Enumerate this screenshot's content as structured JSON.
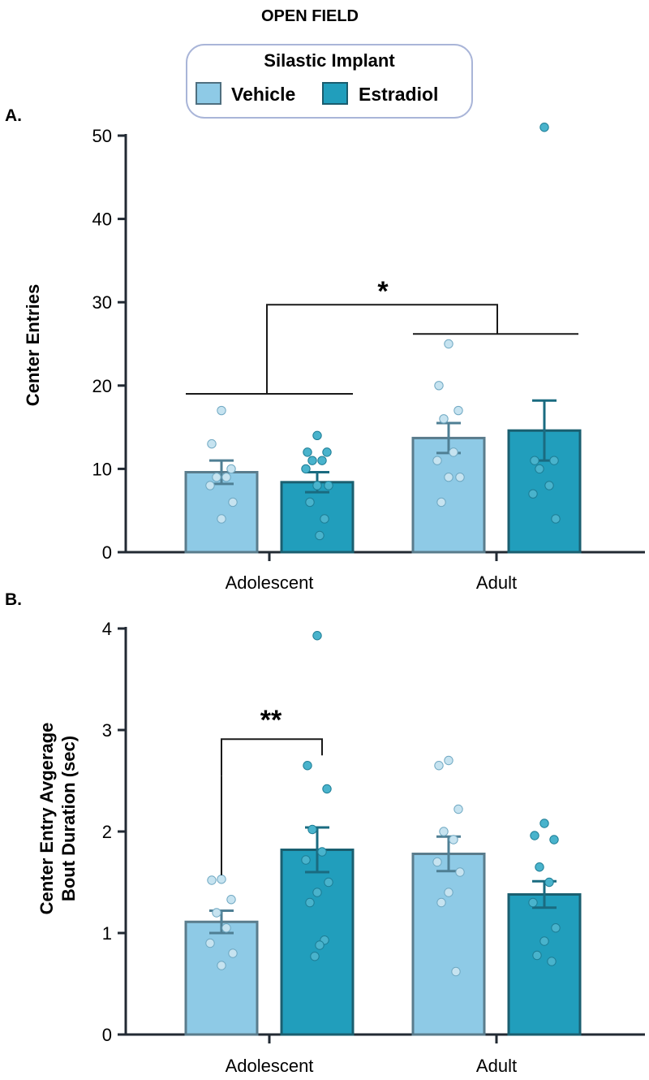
{
  "title": "OPEN FIELD",
  "legend": {
    "title": "Silastic Implant",
    "items": [
      {
        "label": "Vehicle",
        "color": "#8ecae6",
        "edge": "#4f6f7f"
      },
      {
        "label": "Estradiol",
        "color": "#219ebc",
        "edge": "#1a5c6e"
      }
    ]
  },
  "colors": {
    "axis": "#222a33",
    "vehicle_fill": "#8ecae6",
    "vehicle_edge": "#5a7c8c",
    "estradiol_fill": "#219ebc",
    "estradiol_edge": "#1a5f70",
    "vehicle_error": "#4f7f94",
    "estradiol_error": "#1a6b80",
    "vehicle_point": "#c6e3f0",
    "estradiol_point": "#49b3cc"
  },
  "chart_data": [
    {
      "type": "bar",
      "panel_label": "A.",
      "title": "",
      "xlabel": "",
      "ylabel": "Center Entries",
      "ylim": [
        0,
        50
      ],
      "yticks": [
        0,
        10,
        20,
        30,
        40,
        50
      ],
      "categories": [
        "Adolescent",
        "Adult"
      ],
      "series": [
        {
          "name": "Vehicle",
          "values": [
            9.6,
            13.7
          ],
          "sem": [
            1.4,
            1.8
          ],
          "points": [
            [
              17,
              13,
              10,
              9,
              9,
              8,
              6,
              4
            ],
            [
              25,
              20,
              17,
              16,
              12,
              11,
              9,
              9,
              6
            ]
          ]
        },
        {
          "name": "Estradiol",
          "values": [
            8.4,
            14.6
          ],
          "sem": [
            1.2,
            3.6
          ],
          "points": [
            [
              14,
              12,
              12,
              11,
              11,
              10,
              8,
              8,
              6,
              4,
              2
            ],
            [
              51,
              11,
              11,
              10,
              8,
              7,
              4
            ]
          ]
        }
      ],
      "annotations": [
        {
          "type": "main-effect",
          "label": "*"
        }
      ]
    },
    {
      "type": "bar",
      "panel_label": "B.",
      "title": "",
      "xlabel": "",
      "ylabel": [
        "Center Entry Avgerage",
        "Bout Duration (sec)"
      ],
      "ylim": [
        0,
        4
      ],
      "yticks": [
        0,
        1,
        2,
        3,
        4
      ],
      "categories": [
        "Adolescent",
        "Adult"
      ],
      "series": [
        {
          "name": "Vehicle",
          "values": [
            1.11,
            1.78
          ],
          "sem": [
            0.11,
            0.17
          ],
          "points": [
            [
              1.53,
              1.52,
              1.33,
              1.2,
              1.05,
              0.9,
              0.8,
              0.68
            ],
            [
              2.7,
              2.65,
              2.22,
              2.0,
              1.92,
              1.7,
              1.6,
              1.4,
              1.3,
              0.62
            ]
          ]
        },
        {
          "name": "Estradiol",
          "values": [
            1.82,
            1.38
          ],
          "sem": [
            0.22,
            0.13
          ],
          "points": [
            [
              3.93,
              2.65,
              2.42,
              2.02,
              1.8,
              1.72,
              1.5,
              1.4,
              1.3,
              0.93,
              0.88,
              0.77
            ],
            [
              2.08,
              1.96,
              1.92,
              1.65,
              1.5,
              1.3,
              1.05,
              0.92,
              0.78,
              0.72
            ]
          ]
        }
      ],
      "annotations": [
        {
          "type": "pairwise",
          "label": "**"
        }
      ]
    }
  ]
}
